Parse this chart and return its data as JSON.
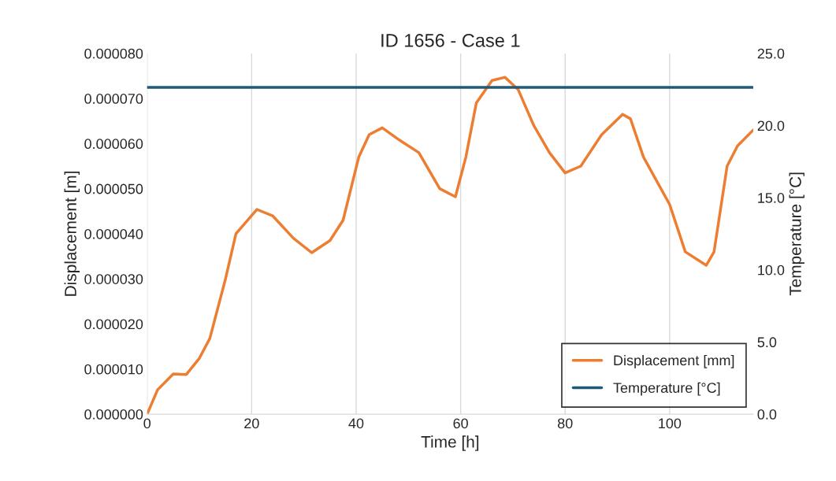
{
  "chart_data": {
    "type": "line",
    "title": "ID 1656 - Case 1",
    "xlabel": "Time [h]",
    "ylabel": "Displacement [m]",
    "y2label": "Temperature [°C]",
    "xlim": [
      0,
      116
    ],
    "xticks": [
      0,
      20,
      40,
      60,
      80,
      100
    ],
    "ylim": [
      0,
      8e-05
    ],
    "yticks": [
      {
        "value": 0,
        "label": "0.000000"
      },
      {
        "value": 1e-05,
        "label": "0.000010"
      },
      {
        "value": 2e-05,
        "label": "0.000020"
      },
      {
        "value": 3e-05,
        "label": "0.000030"
      },
      {
        "value": 4e-05,
        "label": "0.000040"
      },
      {
        "value": 5e-05,
        "label": "0.000050"
      },
      {
        "value": 6e-05,
        "label": "0.000060"
      },
      {
        "value": 7e-05,
        "label": "0.000070"
      },
      {
        "value": 8e-05,
        "label": "0.000080"
      }
    ],
    "y2lim": [
      0,
      25
    ],
    "y2ticks": [
      {
        "value": 0,
        "label": "0.0"
      },
      {
        "value": 5,
        "label": "5.0"
      },
      {
        "value": 10,
        "label": "10.0"
      },
      {
        "value": 15,
        "label": "15.0"
      },
      {
        "value": 20,
        "label": "20.0"
      },
      {
        "value": 25,
        "label": "25.0"
      }
    ],
    "grid": "x",
    "legend": "bottom right",
    "marker": "none",
    "line_style": "solid",
    "series": [
      {
        "name": "Displacement [mm]",
        "color": "#ed7d31",
        "x": [
          0,
          2,
          5,
          7.5,
          10,
          12,
          15,
          17,
          21,
          24,
          28,
          31.5,
          35,
          37.5,
          40.5,
          42.5,
          45,
          48,
          52,
          56,
          59,
          61,
          63,
          66,
          68.5,
          71,
          74,
          77,
          80,
          83,
          87,
          91,
          92.5,
          95,
          100,
          103,
          107,
          108.5,
          111,
          113,
          116
        ],
        "values": [
          0,
          5.4e-06,
          8.9e-06,
          8.8e-06,
          1.24e-05,
          1.68e-05,
          3e-05,
          4e-05,
          4.54e-05,
          4.4e-05,
          3.9e-05,
          3.58e-05,
          3.85e-05,
          4.3e-05,
          5.7e-05,
          6.2e-05,
          6.35e-05,
          6.1e-05,
          5.8e-05,
          5e-05,
          4.82e-05,
          5.7e-05,
          6.9e-05,
          7.4e-05,
          7.47e-05,
          7.2e-05,
          6.4e-05,
          5.8e-05,
          5.35e-05,
          5.5e-05,
          6.2e-05,
          6.65e-05,
          6.55e-05,
          5.7e-05,
          4.65e-05,
          3.6e-05,
          3.3e-05,
          3.6e-05,
          5.5e-05,
          5.95e-05,
          6.3e-05
        ]
      },
      {
        "name": "Temperature [°C]",
        "color": "#1f5a7a",
        "axis": "y2",
        "x": [
          0,
          116
        ],
        "values": [
          22.65,
          22.65
        ]
      }
    ]
  }
}
